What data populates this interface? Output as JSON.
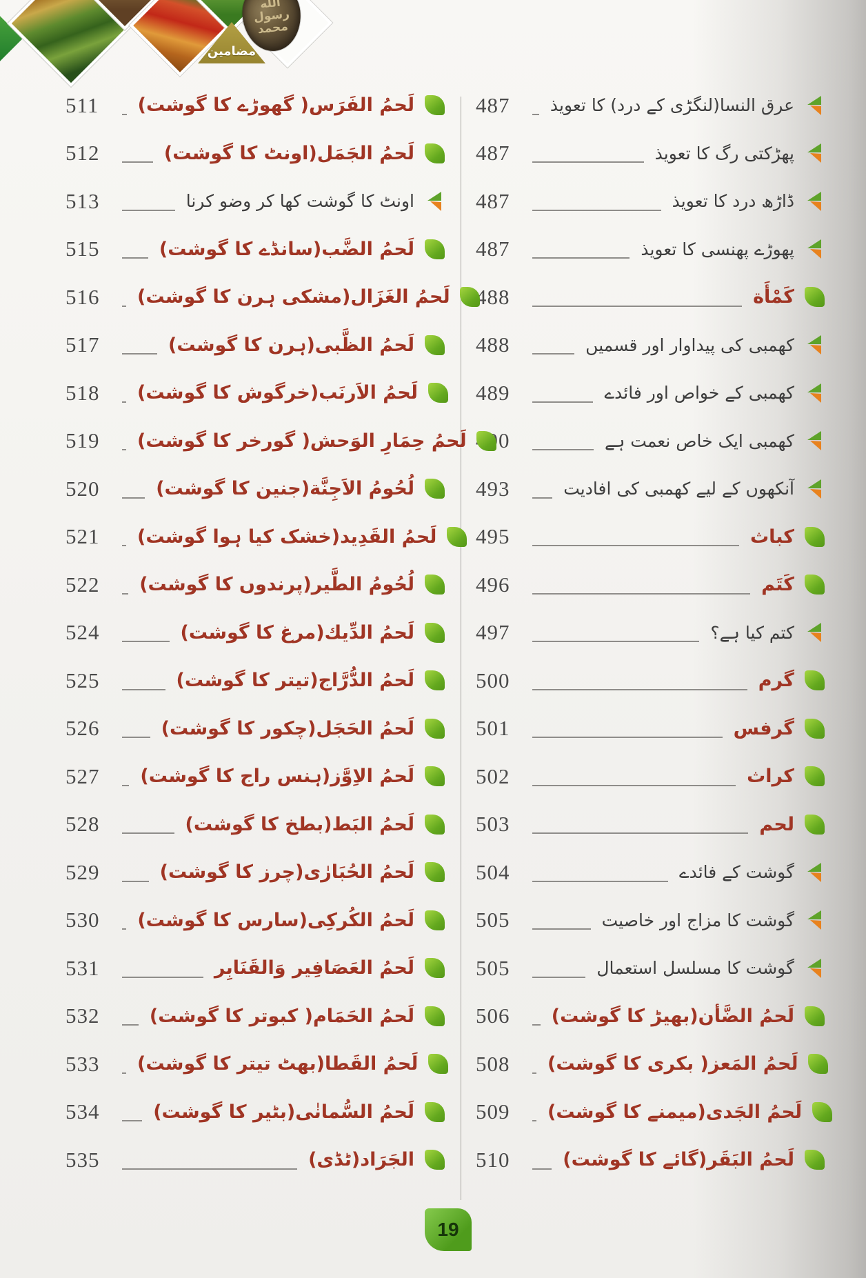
{
  "page_badge": "19",
  "header": {
    "ribbon_label": "مضامین",
    "seal_lines": [
      "الله",
      "رسول",
      "محمد"
    ]
  },
  "colors": {
    "entry_red": "#a03524",
    "entry_black": "#3d3d3d",
    "bullet_green": "#6fae21",
    "chevron_green": "#5ea32a",
    "chevron_orange": "#e8821e",
    "ribbon_gold": "#a59035",
    "badge_green": "#63ad2d"
  },
  "toc": {
    "right_column": [
      {
        "page": "487",
        "title": "عرق النسا(لنگڑی کے درد) کا تعویذ",
        "style": "sub"
      },
      {
        "page": "487",
        "title": "پھڑکتی رگ کا تعویذ",
        "style": "sub"
      },
      {
        "page": "487",
        "title": "ڈاڑھ درد کا تعویذ",
        "style": "sub"
      },
      {
        "page": "487",
        "title": "پھوڑے پھنسی کا تعویذ",
        "style": "sub"
      },
      {
        "page": "488",
        "title": "کَمْأَة",
        "style": "main"
      },
      {
        "page": "488",
        "title": "کھمبی کی پیداوار اور قسمیں",
        "style": "sub"
      },
      {
        "page": "489",
        "title": "کھمبی کے خواص اور فائدے",
        "style": "sub"
      },
      {
        "page": "490",
        "title": "کھمبی ایک خاص نعمت ہے",
        "style": "sub"
      },
      {
        "page": "493",
        "title": "آنکھوں کے لیے کھمبی کی افادیت",
        "style": "sub"
      },
      {
        "page": "495",
        "title": "کباث",
        "style": "main"
      },
      {
        "page": "496",
        "title": "کَتَم",
        "style": "main"
      },
      {
        "page": "497",
        "title": "کتم کیا ہے؟",
        "style": "sub"
      },
      {
        "page": "500",
        "title": "گرم",
        "style": "main"
      },
      {
        "page": "501",
        "title": "گرفس",
        "style": "main"
      },
      {
        "page": "502",
        "title": "کراث",
        "style": "main"
      },
      {
        "page": "503",
        "title": "لحم",
        "style": "main"
      },
      {
        "page": "504",
        "title": "گوشت کے فائدے",
        "style": "sub"
      },
      {
        "page": "505",
        "title": "گوشت کا مزاج اور خاصیت",
        "style": "sub"
      },
      {
        "page": "505",
        "title": "گوشت کا مسلسل استعمال",
        "style": "sub"
      },
      {
        "page": "506",
        "title": "لَحمُ الضَّأن(بھیڑ کا گوشت)",
        "style": "main"
      },
      {
        "page": "508",
        "title": "لَحمُ المَعز( بکری کا گوشت)",
        "style": "main"
      },
      {
        "page": "509",
        "title": "لَحمُ الجَدی(میمنے کا گوشت)",
        "style": "main"
      },
      {
        "page": "510",
        "title": "لَحمُ البَقَر(گائے کا گوشت)",
        "style": "main"
      }
    ],
    "left_column": [
      {
        "page": "511",
        "title": "لَحمُ الفَرَس( گھوڑے کا گوشت)",
        "style": "main"
      },
      {
        "page": "512",
        "title": "لَحمُ الجَمَل(اونٹ کا گوشت)",
        "style": "main"
      },
      {
        "page": "513",
        "title": "اونٹ کا گوشت کھا کر وضو کرنا",
        "style": "sub"
      },
      {
        "page": "515",
        "title": "لَحمُ الضَّب(سانڈے کا گوشت)",
        "style": "main"
      },
      {
        "page": "516",
        "title": "لَحمُ الغَزَال(مشکی ہرن کا گوشت)",
        "style": "main"
      },
      {
        "page": "517",
        "title": "لَحمُ الظَّبی(ہرن کا گوشت)",
        "style": "main"
      },
      {
        "page": "518",
        "title": "لَحمُ الاَرنَب(خرگوش کا گوشت)",
        "style": "main"
      },
      {
        "page": "519",
        "title": "لَحمُ حِمَارِ الوَحش( گورخر کا گوشت)",
        "style": "main"
      },
      {
        "page": "520",
        "title": "لُحُومُ الاَجِنَّة(جنین کا گوشت)",
        "style": "main"
      },
      {
        "page": "521",
        "title": "لَحمُ القَدِید(خشک کیا ہوا گوشت)",
        "style": "main"
      },
      {
        "page": "522",
        "title": "لُحُومُ الطَّیر(پرندوں کا گوشت)",
        "style": "main"
      },
      {
        "page": "524",
        "title": "لَحمُ الدِّیك(مرغ کا گوشت)",
        "style": "main"
      },
      {
        "page": "525",
        "title": "لَحمُ الدُّرَّاج(تیتر کا گوشت)",
        "style": "main"
      },
      {
        "page": "526",
        "title": "لَحمُ الحَجَل(چکور کا گوشت)",
        "style": "main"
      },
      {
        "page": "527",
        "title": "لَحمُ الاِوَّز(ہنس راج کا گوشت)",
        "style": "main"
      },
      {
        "page": "528",
        "title": "لَحمُ البَط(بطخ کا گوشت)",
        "style": "main"
      },
      {
        "page": "529",
        "title": "لَحمُ الحُبَارٰی(چرز کا گوشت)",
        "style": "main"
      },
      {
        "page": "530",
        "title": "لَحمُ الکُرکِی(سارس کا گوشت)",
        "style": "main"
      },
      {
        "page": "531",
        "title": "لَحمُ العَصَافِیر وَالقَنَابِر",
        "style": "main"
      },
      {
        "page": "532",
        "title": "لَحمُ الحَمَام( کبوتر کا گوشت)",
        "style": "main"
      },
      {
        "page": "533",
        "title": "لَحمُ القَطا(بھٹ تیتر کا گوشت)",
        "style": "main"
      },
      {
        "page": "534",
        "title": "لَحمُ السُّمانٰی(بٹیر کا گوشت)",
        "style": "main"
      },
      {
        "page": "535",
        "title": "الجَرَاد(ٹڈی)",
        "style": "main"
      }
    ]
  }
}
